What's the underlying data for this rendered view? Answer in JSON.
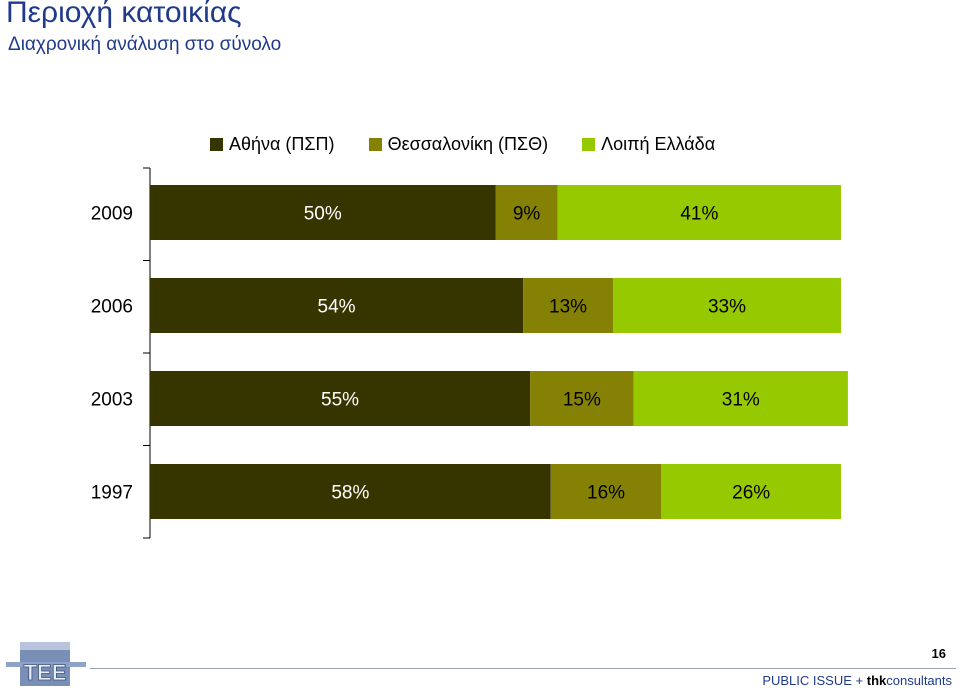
{
  "title": "Περιοχή κατοικίας",
  "subtitle": "Διαχρονική ανάλυση στο σύνολο",
  "colors": {
    "athens": "#363500",
    "thessaloniki": "#858104",
    "rest": "#97c900"
  },
  "chart_data": {
    "type": "bar",
    "orientation": "horizontal",
    "stacked": true,
    "categories": [
      "2009",
      "2006",
      "2003",
      "1997"
    ],
    "series": [
      {
        "name": "Αθήνα (ΠΣΠ)",
        "values": [
          50,
          54,
          55,
          58
        ],
        "labels": [
          "50%",
          "54%",
          "55%",
          "58%"
        ]
      },
      {
        "name": "Θεσσαλονίκη (ΠΣΘ)",
        "values": [
          9,
          13,
          15,
          16
        ],
        "labels": [
          "9%",
          "13%",
          "15%",
          "16%"
        ]
      },
      {
        "name": "Λοιπή Ελλάδα",
        "values": [
          41,
          33,
          31,
          26
        ],
        "labels": [
          "41%",
          "33%",
          "31%",
          "26%"
        ]
      }
    ],
    "xlim": [
      0,
      100
    ],
    "legend": "top",
    "grid": false
  },
  "footer": {
    "page_number": "16",
    "brand_prefix": "PUBLIC ISSUE + ",
    "brand_bold": "thk",
    "brand_suffix": "consultants",
    "logo_text": "ΤΕΕ"
  }
}
